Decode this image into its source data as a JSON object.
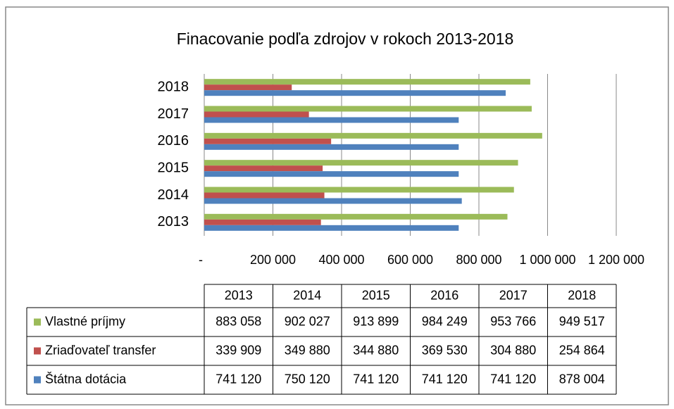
{
  "chart_data": {
    "type": "bar",
    "orientation": "horizontal",
    "title": "Finacovanie podľa zdrojov v rokoch 2013-2018",
    "categories": [
      "2013",
      "2014",
      "2015",
      "2016",
      "2017",
      "2018"
    ],
    "series": [
      {
        "name": "Vlastné príjmy",
        "color": "#9bbb59",
        "values": [
          883058,
          902027,
          913899,
          984249,
          953766,
          949517
        ],
        "value_labels": [
          "883 058",
          "902 027",
          "913 899",
          "984 249",
          "953 766",
          "949 517"
        ]
      },
      {
        "name": "Zriaďovateľ transfer",
        "color": "#c0504d",
        "values": [
          339909,
          349880,
          344880,
          369530,
          304880,
          254864
        ],
        "value_labels": [
          "339 909",
          "349 880",
          "344 880",
          "369 530",
          "304 880",
          "254 864"
        ]
      },
      {
        "name": "Štátna dotácia",
        "color": "#4f81bd",
        "values": [
          741120,
          750120,
          741120,
          741120,
          741120,
          878004
        ],
        "value_labels": [
          "741 120",
          "750 120",
          "741 120",
          "741 120",
          "741 120",
          "878 004"
        ]
      }
    ],
    "xlim": [
      0,
      1200000
    ],
    "xticks": [
      {
        "value": 0,
        "label": "-"
      },
      {
        "value": 200000,
        "label": "200 000"
      },
      {
        "value": 400000,
        "label": "400 000"
      },
      {
        "value": 600000,
        "label": "600 000"
      },
      {
        "value": 800000,
        "label": "800 000"
      },
      {
        "value": 1000000,
        "label": "1 000 000"
      },
      {
        "value": 1200000,
        "label": "1 200 000"
      }
    ],
    "grid": true
  }
}
